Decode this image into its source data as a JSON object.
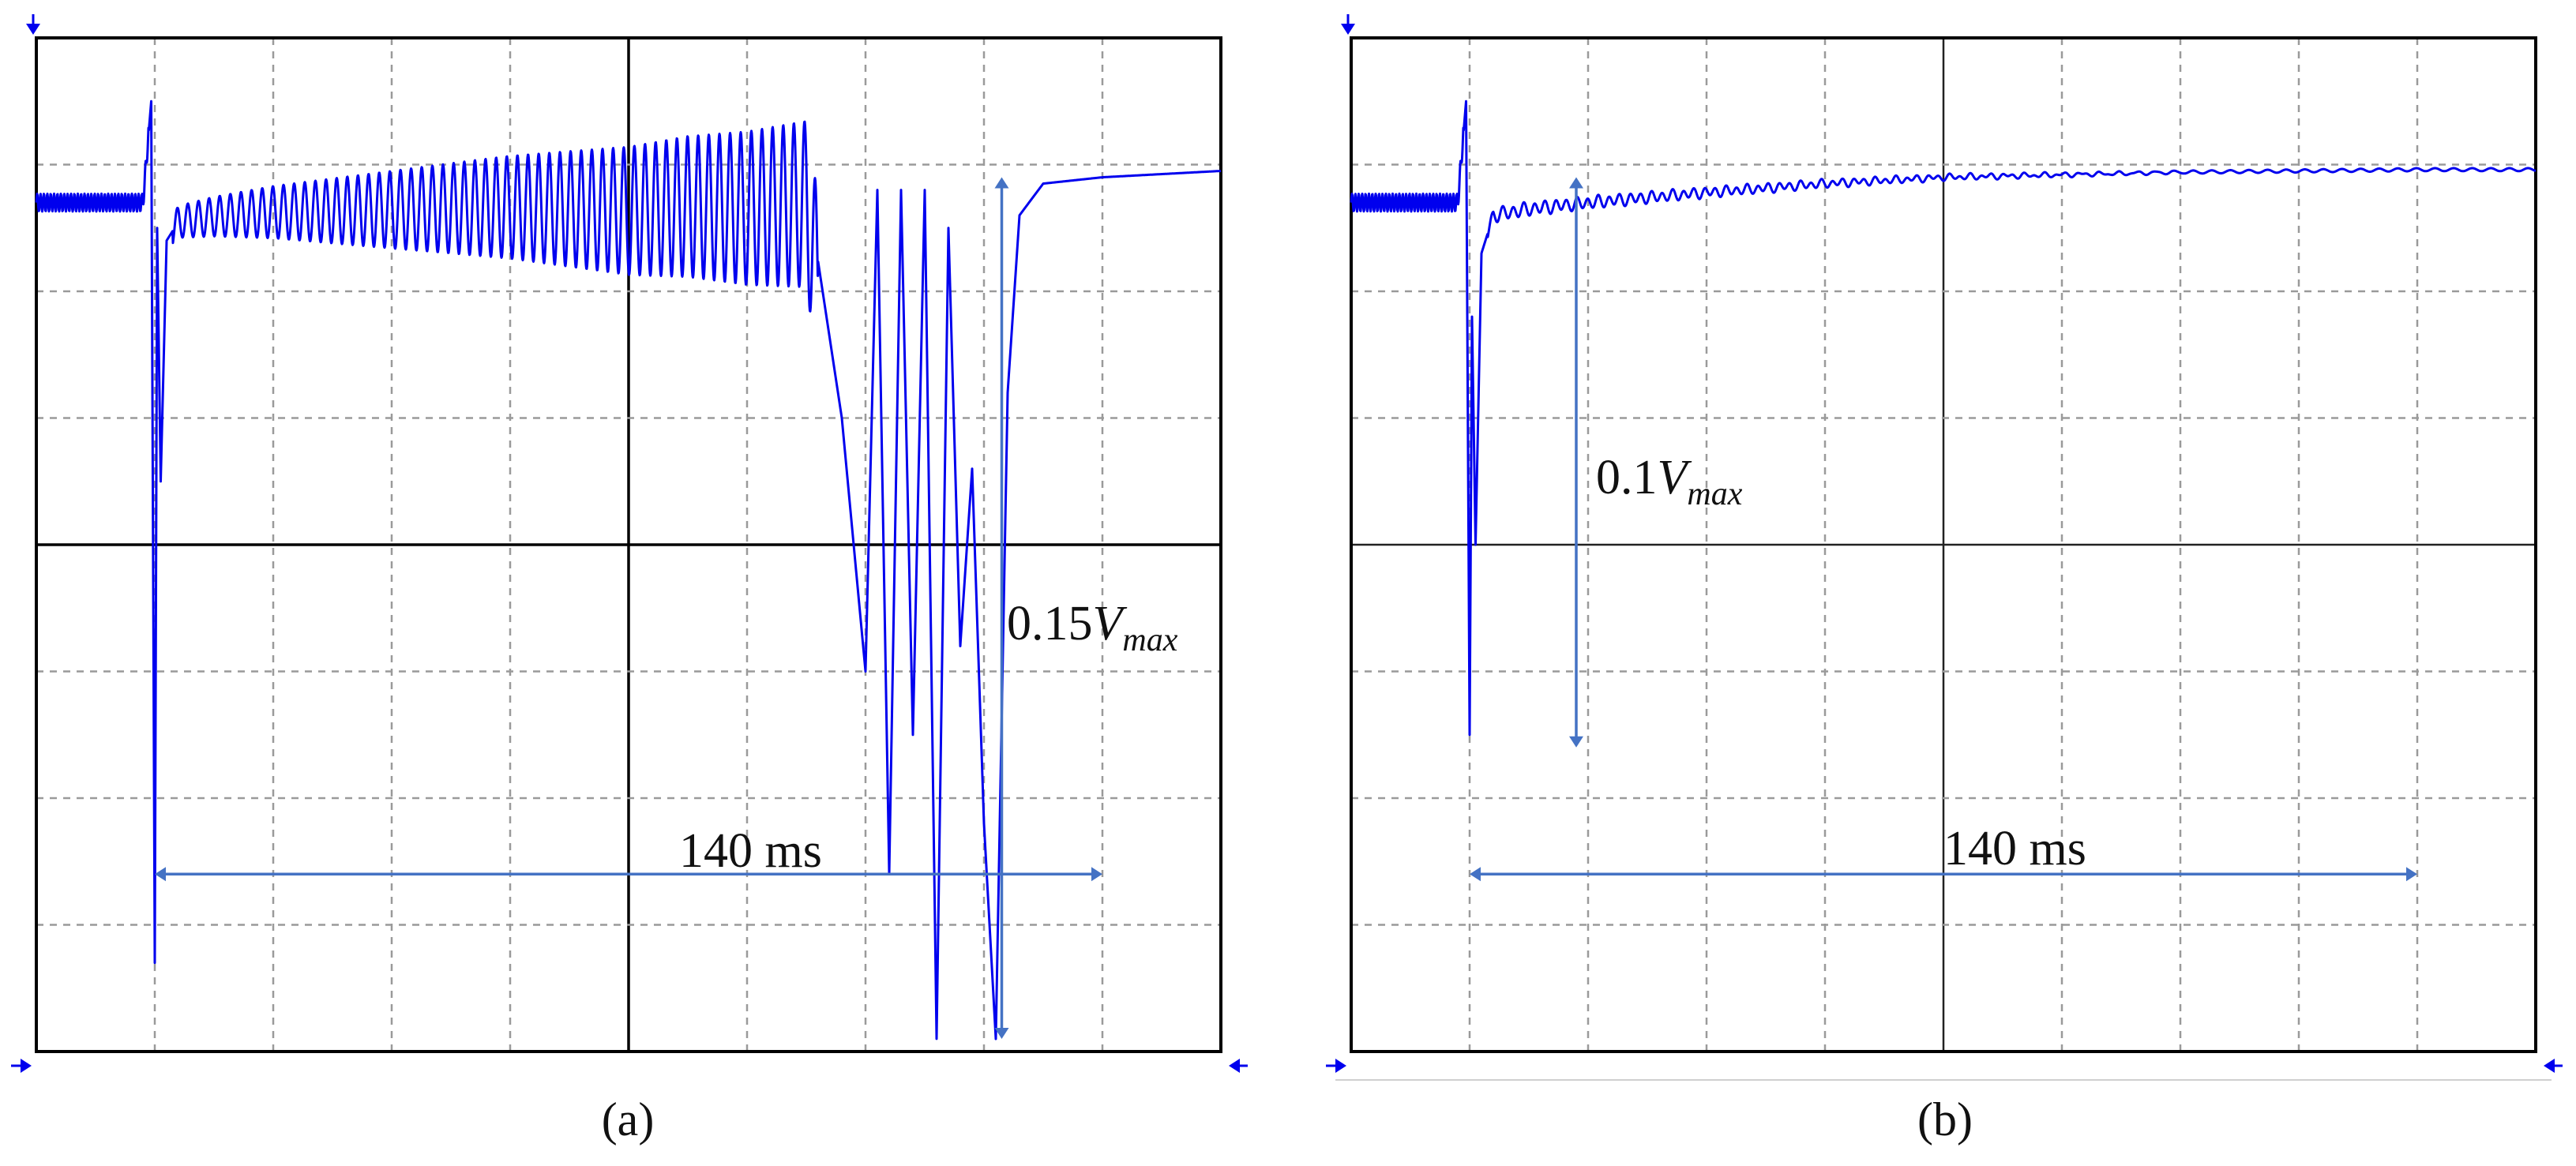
{
  "colors": {
    "trace": "#0000ee",
    "annotation": "#4472c4",
    "frame": "#000000",
    "grid": "#9a9a9a"
  },
  "panels": [
    {
      "caption": "(a)",
      "time_label": "140 ms",
      "amp_label_prefix": "0.15",
      "amp_label_var": "V",
      "amp_label_sub": "max"
    },
    {
      "caption": "(b)",
      "time_label": "140 ms",
      "amp_label_prefix": "0.1",
      "amp_label_var": "V",
      "amp_label_sub": "max"
    }
  ],
  "chart_data": [
    {
      "type": "line",
      "title": "",
      "grid": true,
      "divisions": {
        "x": 10,
        "y": 8
      },
      "xunit": "div",
      "yunit": "div",
      "xlim": [
        0,
        10
      ],
      "ylim": [
        -4,
        4
      ],
      "annotations": [
        {
          "text": "140 ms",
          "from_x": 1.0,
          "to_x": 9.0,
          "at_y": -2.6
        },
        {
          "text": "0.15Vmax",
          "from_y": 2.9,
          "to_y": -3.9,
          "at_x": 8.15
        }
      ],
      "series": [
        {
          "x": [
            0,
            0.5,
            0.9,
            0.97,
            1.0,
            1.02,
            1.05,
            1.1,
            1.2,
            1.5,
            2.0,
            3.0,
            4.0,
            5.0,
            5.5,
            6.0,
            6.5,
            6.8,
            7.0,
            7.1,
            7.2,
            7.3,
            7.4,
            7.5,
            7.6,
            7.7,
            7.8,
            7.9,
            8.0,
            8.1,
            8.2,
            8.3,
            8.5,
            9.0,
            10.0
          ],
          "y": [
            2.7,
            2.7,
            2.7,
            3.5,
            -3.3,
            2.5,
            0.5,
            2.4,
            2.55,
            2.6,
            2.65,
            2.7,
            2.75,
            2.75,
            2.8,
            2.8,
            2.85,
            1.0,
            -1.0,
            2.8,
            -2.6,
            2.8,
            -1.5,
            2.8,
            -3.9,
            2.5,
            -0.8,
            0.6,
            -2.2,
            -3.9,
            1.2,
            2.6,
            2.85,
            2.9,
            2.95
          ]
        }
      ]
    },
    {
      "type": "line",
      "title": "",
      "grid": true,
      "divisions": {
        "x": 10,
        "y": 8
      },
      "xunit": "div",
      "yunit": "div",
      "xlim": [
        0,
        10
      ],
      "ylim": [
        -4,
        4
      ],
      "annotations": [
        {
          "text": "140 ms",
          "from_x": 1.0,
          "to_x": 9.0,
          "at_y": -2.6
        },
        {
          "text": "0.1Vmax",
          "from_y": 2.9,
          "to_y": -1.6,
          "at_x": 1.9
        }
      ],
      "series": [
        {
          "x": [
            0,
            0.5,
            0.9,
            0.97,
            1.0,
            1.02,
            1.05,
            1.1,
            1.2,
            1.5,
            2.0,
            3.0,
            4.0,
            5.0,
            6.0,
            7.0,
            8.0,
            9.0,
            10.0
          ],
          "y": [
            2.7,
            2.7,
            2.7,
            3.5,
            -1.5,
            1.8,
            0.0,
            2.3,
            2.6,
            2.65,
            2.7,
            2.78,
            2.85,
            2.9,
            2.92,
            2.94,
            2.95,
            2.96,
            2.96
          ]
        }
      ]
    }
  ]
}
